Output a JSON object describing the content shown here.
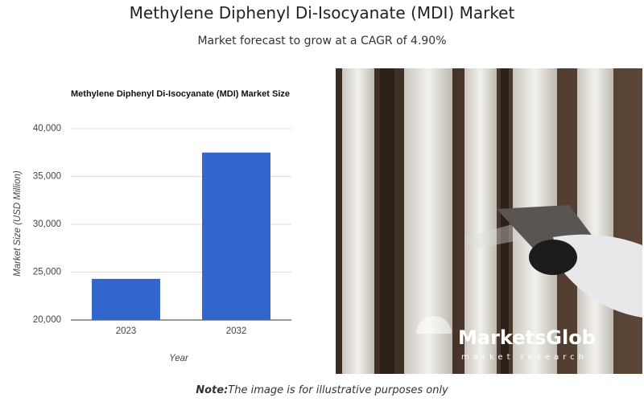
{
  "header": {
    "title": "Methylene Diphenyl Di-Isocyanate (MDI) Market",
    "subtitle": "Market forecast to grow at a CAGR of 4.90%"
  },
  "chart_data": {
    "type": "bar",
    "title": "Methylene Diphenyl Di-Isocyanate (MDI) Market Size",
    "y_label": "Market Size (USD Million)",
    "x_label": "Year",
    "categories": [
      "2023",
      "2032"
    ],
    "values": [
      24300,
      37500
    ],
    "color": "#3366cc",
    "ylim": [
      20000,
      40000
    ],
    "yticks": [
      {
        "value": 20000,
        "label": "20,000"
      },
      {
        "value": 25000,
        "label": "25,000"
      },
      {
        "value": 30000,
        "label": "30,000"
      },
      {
        "value": 35000,
        "label": "35,000"
      },
      {
        "value": 40000,
        "label": "40,000"
      }
    ],
    "grid": true
  },
  "image": {
    "logo": "MarketsGlob",
    "tagline": "market research"
  },
  "note": {
    "label": "Note:",
    "text": "The image is for illustrative purposes only"
  }
}
